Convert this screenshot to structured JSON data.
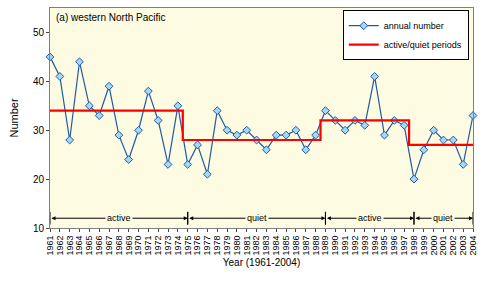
{
  "chart_data": {
    "type": "line",
    "title": "(a) western North Pacific",
    "x_label": "Year (1961-2004)",
    "y_label": "Number",
    "x": [
      1961,
      1962,
      1963,
      1964,
      1965,
      1966,
      1967,
      1968,
      1969,
      1970,
      1971,
      1972,
      1973,
      1974,
      1975,
      1976,
      1977,
      1978,
      1979,
      1980,
      1981,
      1982,
      1983,
      1984,
      1985,
      1986,
      1987,
      1988,
      1989,
      1990,
      1991,
      1992,
      1993,
      1994,
      1995,
      1996,
      1997,
      1998,
      1999,
      2000,
      2001,
      2002,
      2003,
      2004
    ],
    "series": [
      {
        "name": "annual number",
        "color": "#1f5aa6",
        "marker": "diamond",
        "line_style": "solid",
        "values": [
          45,
          41,
          28,
          44,
          35,
          33,
          39,
          29,
          24,
          30,
          38,
          32,
          23,
          35,
          23,
          27,
          21,
          34,
          30,
          29,
          30,
          28,
          26,
          29,
          29,
          30,
          26,
          29,
          34,
          32,
          30,
          32,
          31,
          41,
          29,
          32,
          31,
          20,
          26,
          30,
          28,
          28,
          23,
          33
        ]
      },
      {
        "name": "active/quiet periods",
        "color": "#ff0000",
        "line_style": "step",
        "values": [
          34,
          34,
          34,
          34,
          34,
          34,
          34,
          34,
          34,
          34,
          34,
          34,
          34,
          34,
          28,
          28,
          28,
          28,
          28,
          28,
          28,
          28,
          28,
          28,
          28,
          28,
          28,
          28,
          32,
          32,
          32,
          32,
          32,
          32,
          32,
          32,
          32,
          27,
          27,
          27,
          27,
          27,
          27,
          27
        ]
      }
    ],
    "xlim": [
      1961,
      2004
    ],
    "ylim": [
      10,
      55
    ],
    "xticks": [
      1961,
      1962,
      1963,
      1964,
      1965,
      1966,
      1967,
      1968,
      1969,
      1970,
      1971,
      1972,
      1973,
      1974,
      1975,
      1976,
      1977,
      1978,
      1979,
      1980,
      1981,
      1982,
      1983,
      1984,
      1985,
      1986,
      1987,
      1988,
      1989,
      1990,
      1991,
      1992,
      1993,
      1994,
      1995,
      1996,
      1997,
      1998,
      1999,
      2000,
      2001,
      2002,
      2003,
      2004
    ],
    "yticks": [
      10,
      20,
      30,
      40,
      50
    ],
    "grid": false,
    "legend": "upper right",
    "annotations": [
      {
        "text": "active",
        "x0": 1961,
        "x1": 1975,
        "y": 12
      },
      {
        "text": "quiet",
        "x0": 1975,
        "x1": 1989,
        "y": 12
      },
      {
        "text": "active",
        "x0": 1989,
        "x1": 1998,
        "y": 12
      },
      {
        "text": "quiet",
        "x0": 1998,
        "x1": 2004,
        "y": 12
      }
    ]
  }
}
